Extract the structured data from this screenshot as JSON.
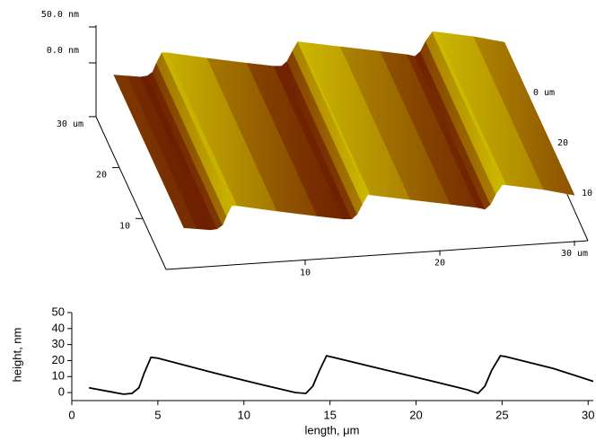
{
  "chart_data": [
    {
      "type": "surface",
      "zticks": [
        {
          "value": 50,
          "label": "50.0 nm"
        },
        {
          "value": 0,
          "label": "0.0 nm"
        }
      ],
      "yticks": [
        {
          "value": 30,
          "label": "30 um"
        },
        20,
        10
      ],
      "xticks": [
        10,
        20,
        {
          "value": 30,
          "label": "30 um"
        }
      ],
      "right_labels": [
        "0 um",
        "20",
        "10"
      ]
    },
    {
      "type": "line",
      "x": [
        1,
        2,
        3,
        3.5,
        3.9,
        4.2,
        4.6,
        5,
        8,
        11,
        13,
        13.6,
        14,
        14.4,
        14.8,
        15,
        18,
        21,
        23,
        23.6,
        24,
        24.4,
        24.9,
        25.2,
        28,
        30.3
      ],
      "values": [
        3,
        1,
        -1,
        -0.5,
        3,
        12,
        22,
        21.5,
        13,
        5,
        0,
        -0.5,
        4,
        14,
        23,
        22.5,
        14.7,
        7,
        1.7,
        -0.5,
        4,
        14,
        23,
        22.5,
        15,
        7
      ],
      "color": "#000000",
      "xlim": [
        0,
        30.3
      ],
      "ylim": [
        -5,
        50
      ],
      "xticks": [
        0,
        5,
        10,
        15,
        20,
        25,
        30
      ],
      "yticks": [
        0,
        10,
        20,
        30,
        40,
        50
      ],
      "xlabel": "length, μm",
      "ylabel": "height, nm"
    }
  ]
}
